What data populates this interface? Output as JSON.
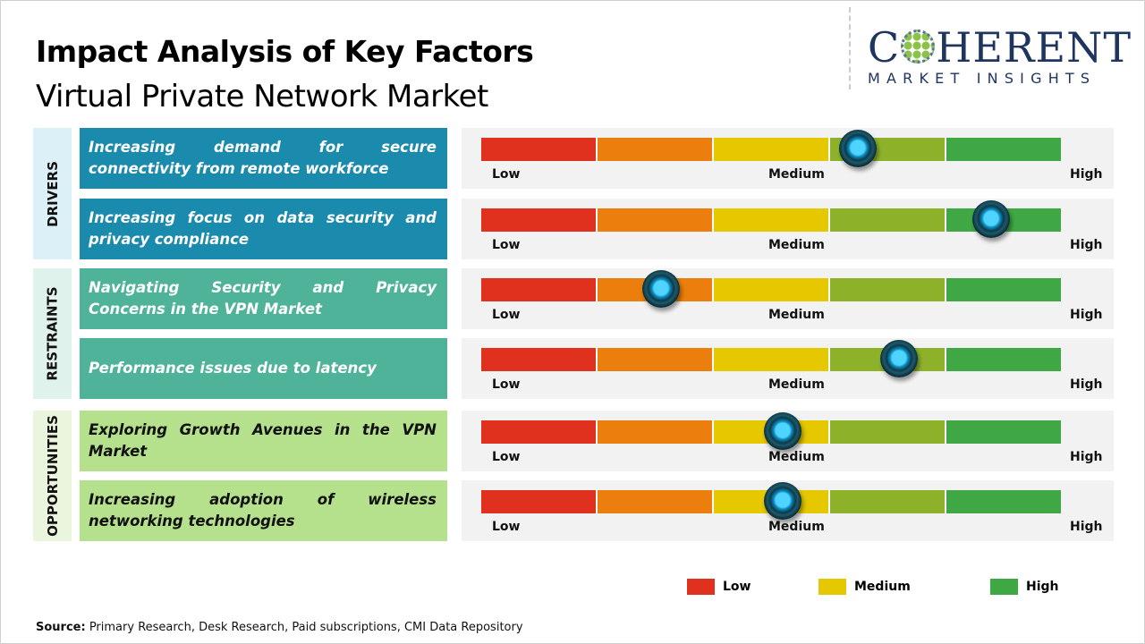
{
  "header": {
    "title": "Impact Analysis of Key Factors",
    "subtitle": "Virtual Private Network Market"
  },
  "logo": {
    "big_pre": "C",
    "big_post": "HERENT",
    "small": "MARKET INSIGHTS"
  },
  "colors": {
    "low": "#e0301e",
    "low_mid": "#eb7e0c",
    "medium": "#e5c800",
    "mid_high": "#8db22a",
    "high": "#3fa844",
    "drivers": "#1a8aad",
    "restraints": "#4fb39a",
    "opportunities": "#b5e08c"
  },
  "chart_data": {
    "type": "impact-gauge",
    "scale_labels": {
      "low": "Low",
      "medium": "Medium",
      "high": "High"
    },
    "categories": [
      {
        "name": "DRIVERS",
        "factors": [
          {
            "label": "Increasing demand for secure connectivity from remote workforce",
            "impact": 0.65
          },
          {
            "label": "Increasing focus on data security and privacy compliance",
            "impact": 0.88
          }
        ]
      },
      {
        "name": "RESTRAINTS",
        "factors": [
          {
            "label": "Navigating Security and Privacy Concerns in the VPN Market",
            "impact": 0.31
          },
          {
            "label": "Performance issues due to latency",
            "impact": 0.72
          }
        ]
      },
      {
        "name": "OPPORTUNITIES",
        "factors": [
          {
            "label": "Exploring Growth Avenues in the VPN Market",
            "impact": 0.52
          },
          {
            "label": "Increasing adoption of wireless networking technologies",
            "impact": 0.52
          }
        ]
      }
    ],
    "legend": [
      "Low",
      "Medium",
      "High"
    ]
  },
  "source": {
    "label": "Source:",
    "text": " Primary Research, Desk Research, Paid subscriptions, CMI Data Repository"
  }
}
